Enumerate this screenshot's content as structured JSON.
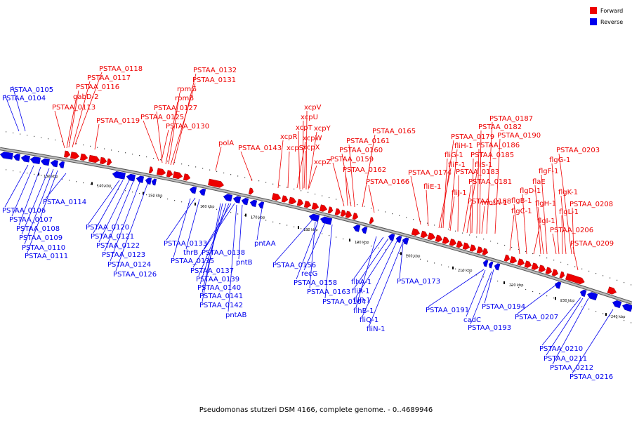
{
  "caption": "Pseudomonas stutzeri DSM 4166, complete genome. - 0..4689946",
  "legend": {
    "forward": {
      "label": "Forward",
      "color": "#ee0000"
    },
    "reverse": {
      "label": "Reverse",
      "color": "#0000ee"
    }
  },
  "colors": {
    "forward": "#ee0000",
    "reverse": "#0000ee",
    "backbone": "#888888"
  },
  "ticks": [
    "130 kbp",
    "140 kbp",
    "150 kbp",
    "160 kbp",
    "170 kbp",
    "180 kbp",
    "190 kbp",
    "200 kbp",
    "210 kbp",
    "220 kbp",
    "230 kbp",
    "240 kbp"
  ],
  "forward_labels": [
    "PSTAA_0118",
    "PSTAA_0117",
    "PSTAA_0116",
    "gabD-2",
    "PSTAA_0113",
    "PSTAA_0119",
    "PSTAA_0132",
    "PSTAA_0131",
    "rpmG",
    "rpmB",
    "PSTAA_0127",
    "PSTAA_0125",
    "PSTAA_0130",
    "polA",
    "PSTAA_0143",
    "xcpV",
    "xcpU",
    "xcpT",
    "xcpY",
    "xcpR",
    "xcpW",
    "xcpS",
    "xcpX",
    "xcpZ",
    "PSTAA_0165",
    "PSTAA_0161",
    "PSTAA_0160",
    "PSTAA_0159",
    "PSTAA_0162",
    "PSTAA_0166",
    "PSTAA_0187",
    "PSTAA_0182",
    "PSTAA_0179",
    "PSTAA_0190",
    "fliH-1",
    "PSTAA_0186",
    "fliG-1",
    "PSTAA_0185",
    "fliF-1",
    "fliS-1",
    "PSTAA_0174",
    "PSTAA_0183",
    "fliE-1",
    "PSTAA_0181",
    "fliJ-1",
    "motA-1",
    "PSTAA_0188",
    "PSTAA_0203",
    "flgG-1",
    "flgF-1",
    "flaE",
    "flgD-1",
    "flgK-1",
    "flgB-1",
    "flgH-1",
    "flgC-1",
    "flgL-1",
    "flgI-1",
    "PSTAA_0208",
    "PSTAA_0206",
    "PSTAA_0209"
  ],
  "reverse_labels": [
    "PSTAA_0105",
    "PSTAA_0104",
    "PSTAA_0114",
    "PSTAA_0106",
    "PSTAA_0107",
    "PSTAA_0108",
    "PSTAA_0109",
    "PSTAA_0110",
    "PSTAA_0111",
    "PSTAA_0120",
    "PSTAA_0121",
    "PSTAA_0122",
    "PSTAA_0123",
    "PSTAA_0124",
    "PSTAA_0126",
    "PSTAA_0133",
    "thrB",
    "PSTAA_0138",
    "PSTAA_0135",
    "pntB",
    "PSTAA_0137",
    "PSTAA_0139",
    "PSTAA_0140",
    "PSTAA_0141",
    "PSTAA_0142",
    "pntAB",
    "pntAA",
    "PSTAA_0156",
    "recG",
    "PSTAA_0158",
    "PSTAA_0163",
    "PSTAA_0164",
    "flhA-1",
    "fliR-1",
    "fliP-1",
    "flhB-1",
    "fliQ-1",
    "fliN-1",
    "PSTAA_0173",
    "PSTAA_0191",
    "PSTAA_0194",
    "cadC",
    "PSTAA_0193",
    "PSTAA_0207",
    "PSTAA_0210",
    "PSTAA_0211",
    "PSTAA_0212",
    "PSTAA_0216"
  ]
}
